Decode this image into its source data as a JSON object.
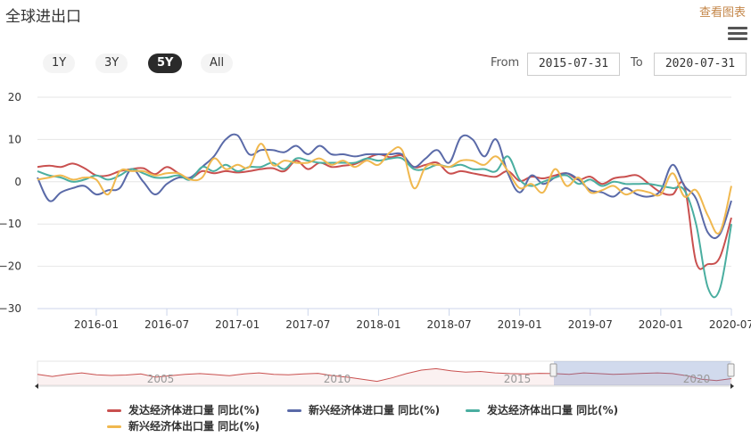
{
  "header": {
    "title": "全球进出口",
    "view_link": "查看图表"
  },
  "range_selector": {
    "buttons": [
      "1Y",
      "3Y",
      "5Y",
      "All"
    ],
    "active": "5Y",
    "from_label": "From",
    "from_value": "2015-07-31",
    "to_label": "To",
    "to_value": "2020-07-31"
  },
  "navigator": {
    "labels": [
      "2005",
      "2010",
      "2015",
      "2020"
    ]
  },
  "chart_data": {
    "type": "line",
    "x_ticks": [
      "2016-01",
      "2016-07",
      "2017-01",
      "2017-07",
      "2018-01",
      "2018-07",
      "2019-01",
      "2019-07",
      "2020-01",
      "2020-07"
    ],
    "y_ticks": [
      "20",
      "10",
      "0",
      "−10",
      "−20",
      "−30"
    ],
    "xlim": [
      "2015-08",
      "2020-07"
    ],
    "ylim": [
      -30,
      20
    ],
    "x": [
      "2015-08",
      "2015-09",
      "2015-10",
      "2015-11",
      "2015-12",
      "2016-01",
      "2016-02",
      "2016-03",
      "2016-04",
      "2016-05",
      "2016-06",
      "2016-07",
      "2016-08",
      "2016-09",
      "2016-10",
      "2016-11",
      "2016-12",
      "2017-01",
      "2017-02",
      "2017-03",
      "2017-04",
      "2017-05",
      "2017-06",
      "2017-07",
      "2017-08",
      "2017-09",
      "2017-10",
      "2017-11",
      "2017-12",
      "2018-01",
      "2018-02",
      "2018-03",
      "2018-04",
      "2018-05",
      "2018-06",
      "2018-07",
      "2018-08",
      "2018-09",
      "2018-10",
      "2018-11",
      "2018-12",
      "2019-01",
      "2019-02",
      "2019-03",
      "2019-04",
      "2019-05",
      "2019-06",
      "2019-07",
      "2019-08",
      "2019-09",
      "2019-10",
      "2019-11",
      "2019-12",
      "2020-01",
      "2020-02",
      "2020-03",
      "2020-04",
      "2020-05",
      "2020-06",
      "2020-07"
    ],
    "series": [
      {
        "name": "发达经济体进口量 同比(%)",
        "color": "#c9504f",
        "values": [
          3.5,
          3.8,
          3.5,
          4.3,
          3.2,
          1.5,
          1.5,
          2.5,
          3.0,
          3.2,
          1.8,
          3.5,
          2.0,
          0.8,
          2.5,
          2.0,
          2.5,
          2.2,
          2.5,
          3.0,
          3.2,
          2.5,
          5.0,
          3.0,
          4.5,
          3.5,
          3.8,
          4.2,
          5.5,
          6.5,
          5.8,
          6.2,
          3.5,
          4.0,
          4.5,
          2.0,
          2.5,
          2.0,
          1.5,
          1.2,
          2.5,
          0.2,
          1.2,
          0.8,
          1.5,
          2.0,
          0.5,
          1.2,
          -0.5,
          0.8,
          1.2,
          1.5,
          -0.5,
          -2.5,
          -3.0,
          -1.0,
          -19.0,
          -19.5,
          -18.0,
          -8.5
        ]
      },
      {
        "name": "新兴经济体进口量 同比(%)",
        "color": "#5a6aa8",
        "values": [
          1.0,
          -4.5,
          -2.5,
          -1.5,
          -1.0,
          -3.0,
          -2.0,
          -1.5,
          3.0,
          0.0,
          -3.0,
          -0.5,
          1.0,
          1.0,
          3.5,
          6.0,
          10.0,
          11.0,
          6.5,
          7.5,
          7.5,
          7.0,
          8.5,
          6.5,
          8.5,
          6.5,
          6.5,
          6.0,
          6.5,
          6.5,
          6.5,
          6.5,
          3.5,
          5.5,
          7.5,
          4.5,
          10.5,
          10.0,
          6.0,
          10.0,
          2.0,
          -2.5,
          1.5,
          -0.5,
          1.0,
          2.0,
          0.5,
          -2.0,
          -2.5,
          -3.5,
          -1.5,
          -3.0,
          -3.5,
          -2.0,
          4.0,
          -1.0,
          -4.0,
          -12.0,
          -12.5,
          -4.5
        ]
      },
      {
        "name": "发达经济体出口量 同比(%)",
        "color": "#4aaea0",
        "values": [
          2.5,
          1.5,
          1.0,
          0.0,
          0.5,
          1.5,
          0.5,
          1.5,
          3.0,
          2.0,
          1.0,
          1.0,
          1.5,
          0.5,
          3.5,
          2.5,
          4.0,
          2.5,
          3.5,
          3.5,
          4.5,
          3.0,
          5.5,
          5.0,
          4.5,
          4.5,
          4.5,
          4.5,
          5.5,
          5.0,
          5.5,
          5.5,
          3.0,
          3.0,
          4.0,
          3.5,
          4.0,
          3.0,
          3.0,
          2.5,
          6.0,
          0.5,
          -1.0,
          0.0,
          1.0,
          1.5,
          -0.5,
          0.5,
          -1.0,
          0.0,
          -0.5,
          -0.5,
          -0.5,
          -1.0,
          -1.5,
          -2.0,
          -10.0,
          -25.0,
          -25.5,
          -10.0
        ]
      },
      {
        "name": "新兴经济体出口量 同比(%)",
        "color": "#f0b84f",
        "values": [
          0.5,
          1.0,
          1.5,
          0.5,
          1.0,
          0.5,
          -3.0,
          2.5,
          2.5,
          2.5,
          1.5,
          2.0,
          2.0,
          0.5,
          1.0,
          5.5,
          3.0,
          4.0,
          3.5,
          9.0,
          4.0,
          5.0,
          4.5,
          4.5,
          5.5,
          4.0,
          5.0,
          3.5,
          5.0,
          4.0,
          7.0,
          7.5,
          -1.5,
          3.5,
          4.0,
          3.5,
          5.0,
          5.0,
          4.0,
          6.0,
          2.5,
          -1.5,
          -0.5,
          -2.5,
          3.0,
          -1.0,
          1.0,
          -2.5,
          -2.0,
          -1.0,
          -3.0,
          -2.0,
          -2.5,
          -3.0,
          2.0,
          -3.5,
          -2.0,
          -8.0,
          -12.0,
          -1.0
        ]
      }
    ],
    "navigator_series": [
      0.5,
      -1.0,
      0.5,
      1.5,
      0.2,
      -0.3,
      0.0,
      0.8,
      -1.5,
      -0.5,
      0.5,
      1.0,
      0.3,
      -0.5,
      0.8,
      1.5,
      0.5,
      0.2,
      0.8,
      1.2,
      -0.5,
      -1.5,
      -3.0,
      -4.5,
      -2.0,
      1.0,
      3.5,
      4.5,
      3.0,
      2.0,
      2.5,
      1.5,
      1.0,
      0.8,
      1.2,
      1.0,
      0.5,
      1.5,
      1.0,
      0.5,
      0.8,
      1.2,
      1.5,
      1.0,
      -0.5,
      -3.0,
      -4.0,
      -2.5
    ]
  },
  "colors": {
    "accent_link": "#c4874a",
    "navigator_mask": "#ccd6eb",
    "active_button": "#2a2a2a"
  },
  "icons": {
    "menu": "hamburger-icon"
  }
}
